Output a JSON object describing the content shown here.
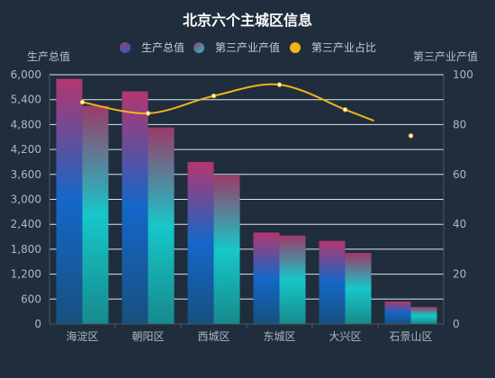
{
  "chart_data": {
    "type": "bar",
    "title": "北京六个主城区信息",
    "categories": [
      "海淀区",
      "朝阳区",
      "西城区",
      "东城区",
      "大兴区",
      "石景山区"
    ],
    "series": [
      {
        "name": "生产总值",
        "type": "bar",
        "axis": "left",
        "values": [
          5900,
          5600,
          3900,
          2200,
          2000,
          540
        ]
      },
      {
        "name": "第三产业产值",
        "type": "bar",
        "axis": "left",
        "values": [
          5250,
          4730,
          3580,
          2130,
          1710,
          410
        ]
      },
      {
        "name": "第三产业占比",
        "type": "line",
        "axis": "right",
        "values": [
          89,
          84.5,
          91.5,
          96,
          86,
          75.5
        ]
      }
    ],
    "y_left": {
      "label": "生产总值",
      "min": 0,
      "max": 6000,
      "ticks": [
        "0",
        "600",
        "1,200",
        "1,800",
        "2,400",
        "3,000",
        "3,600",
        "4,200",
        "4,800",
        "5,400",
        "6,000"
      ]
    },
    "y_right": {
      "label": "第三产业产值",
      "min": 0,
      "max": 100,
      "ticks": [
        "0",
        "20",
        "40",
        "60",
        "80",
        "100"
      ]
    },
    "grid": true,
    "legend": "top-center",
    "colors": {
      "background": "#1f2d3d",
      "bar1_top": "#b3366f",
      "bar1_mid": "#1467c9",
      "bar1_bottom": "#17507e",
      "bar2_top": "#9c3a68",
      "bar2_mid": "#17c7c9",
      "bar2_bottom": "#178a8c",
      "line": "#f5b31b",
      "grid": "#dfe5ec",
      "axis": "#4a5868"
    }
  }
}
